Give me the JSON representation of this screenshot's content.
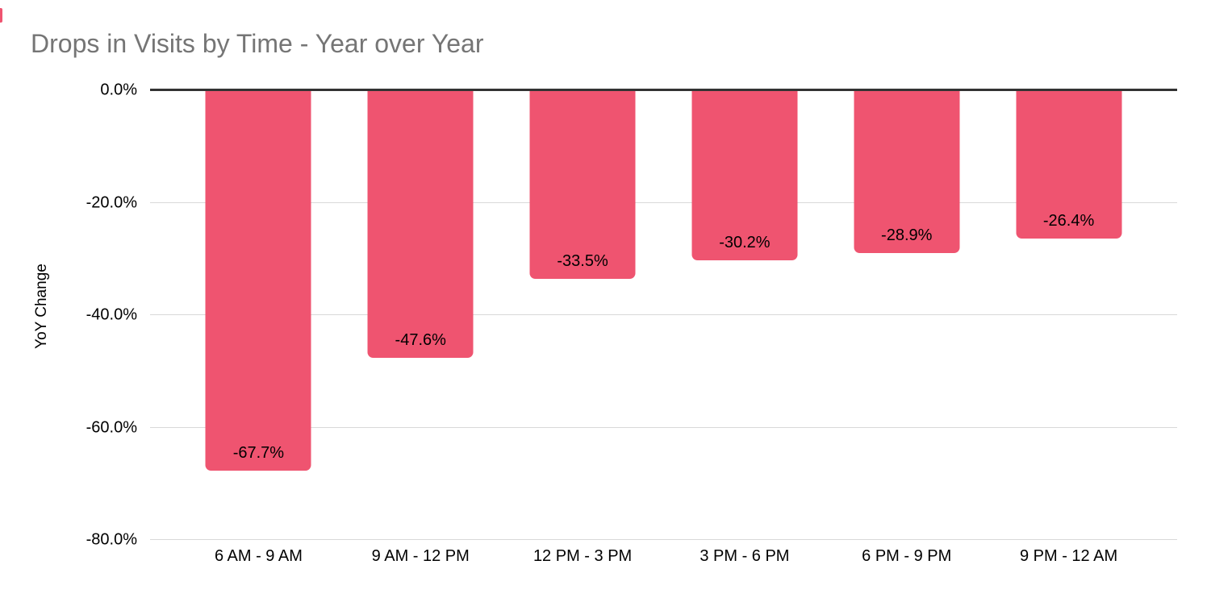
{
  "title": "Drops in Visits by Time - Year over Year",
  "colors": {
    "bar": "#ef5470",
    "gridline": "#d9d9d9",
    "zero_line": "#333333",
    "title_text": "#757575",
    "label_text": "#000000",
    "background": "#ffffff"
  },
  "chart_data": {
    "type": "bar",
    "title": "Drops in Visits by Time - Year over Year",
    "categories": [
      "6 AM - 9 AM",
      "9 AM - 12 PM",
      "12 PM - 3 PM",
      "3 PM - 6 PM",
      "6 PM - 9 PM",
      "9 PM - 12 AM"
    ],
    "values": [
      -67.7,
      -47.6,
      -33.5,
      -30.2,
      -28.9,
      -26.4
    ],
    "value_labels": [
      "-67.7%",
      "-47.6%",
      "-33.5%",
      "-30.2%",
      "-28.9%",
      "-26.4%"
    ],
    "xlabel": "",
    "ylabel": "YoY Change",
    "ylim": [
      -80,
      0
    ],
    "yticks": [
      0,
      -20,
      -40,
      -60,
      -80
    ],
    "ytick_labels": [
      "0.0%",
      "-20.0%",
      "-40.0%",
      "-60.0%",
      "-80.0%"
    ],
    "grid": true,
    "legend": false,
    "bar_color": "#ef5470",
    "value_label_position": "inside-bottom"
  }
}
